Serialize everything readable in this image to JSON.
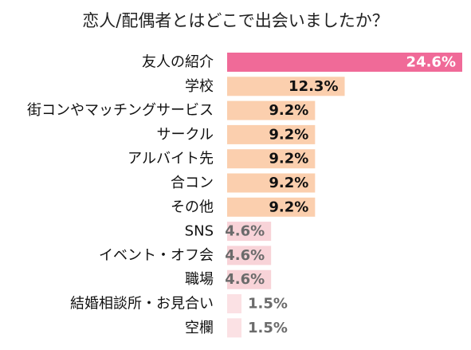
{
  "chart_data": {
    "type": "bar",
    "orientation": "horizontal",
    "title": "恋人/配偶者とはどこで出会いましたか？",
    "categories": [
      "友人の紹介",
      "学校",
      "街コンやマッチングサービス",
      "サークル",
      "アルバイト先",
      "合コン",
      "その他",
      "SNS",
      "イベント・オフ会",
      "職場",
      "結婚相談所・お見合い",
      "空欄"
    ],
    "values": [
      24.6,
      12.3,
      9.2,
      9.2,
      9.2,
      9.2,
      9.2,
      4.6,
      4.6,
      4.6,
      1.5,
      1.5
    ],
    "value_labels": [
      "24.6%",
      "12.3%",
      "9.2%",
      "9.2%",
      "9.2%",
      "9.2%",
      "9.2%",
      "4.6%",
      "4.6%",
      "4.6%",
      "1.5%",
      "1.5%"
    ],
    "unit": "%",
    "xlim": [
      0,
      24.6
    ],
    "grid": false,
    "legend": "none",
    "colors": {
      "highlight_bar": "#f06a98",
      "peach_bar": "#fbcfae",
      "pink_bar": "#f8d3d8",
      "light_pink_bar": "#fbe1e4",
      "highlight_label": "#ffffff",
      "dark_label": "#111111",
      "muted_label": "#6b6b6b"
    },
    "bar_color_keys": [
      "highlight_bar",
      "peach_bar",
      "peach_bar",
      "peach_bar",
      "peach_bar",
      "peach_bar",
      "peach_bar",
      "pink_bar",
      "pink_bar",
      "pink_bar",
      "light_pink_bar",
      "light_pink_bar"
    ],
    "label_color_keys": [
      "highlight_label",
      "dark_label",
      "dark_label",
      "dark_label",
      "dark_label",
      "dark_label",
      "dark_label",
      "muted_label",
      "muted_label",
      "muted_label",
      "muted_label",
      "muted_label"
    ],
    "label_positions": [
      "inside",
      "inside",
      "inside",
      "inside",
      "inside",
      "inside",
      "inside",
      "inside",
      "inside",
      "inside",
      "outside",
      "outside"
    ]
  }
}
